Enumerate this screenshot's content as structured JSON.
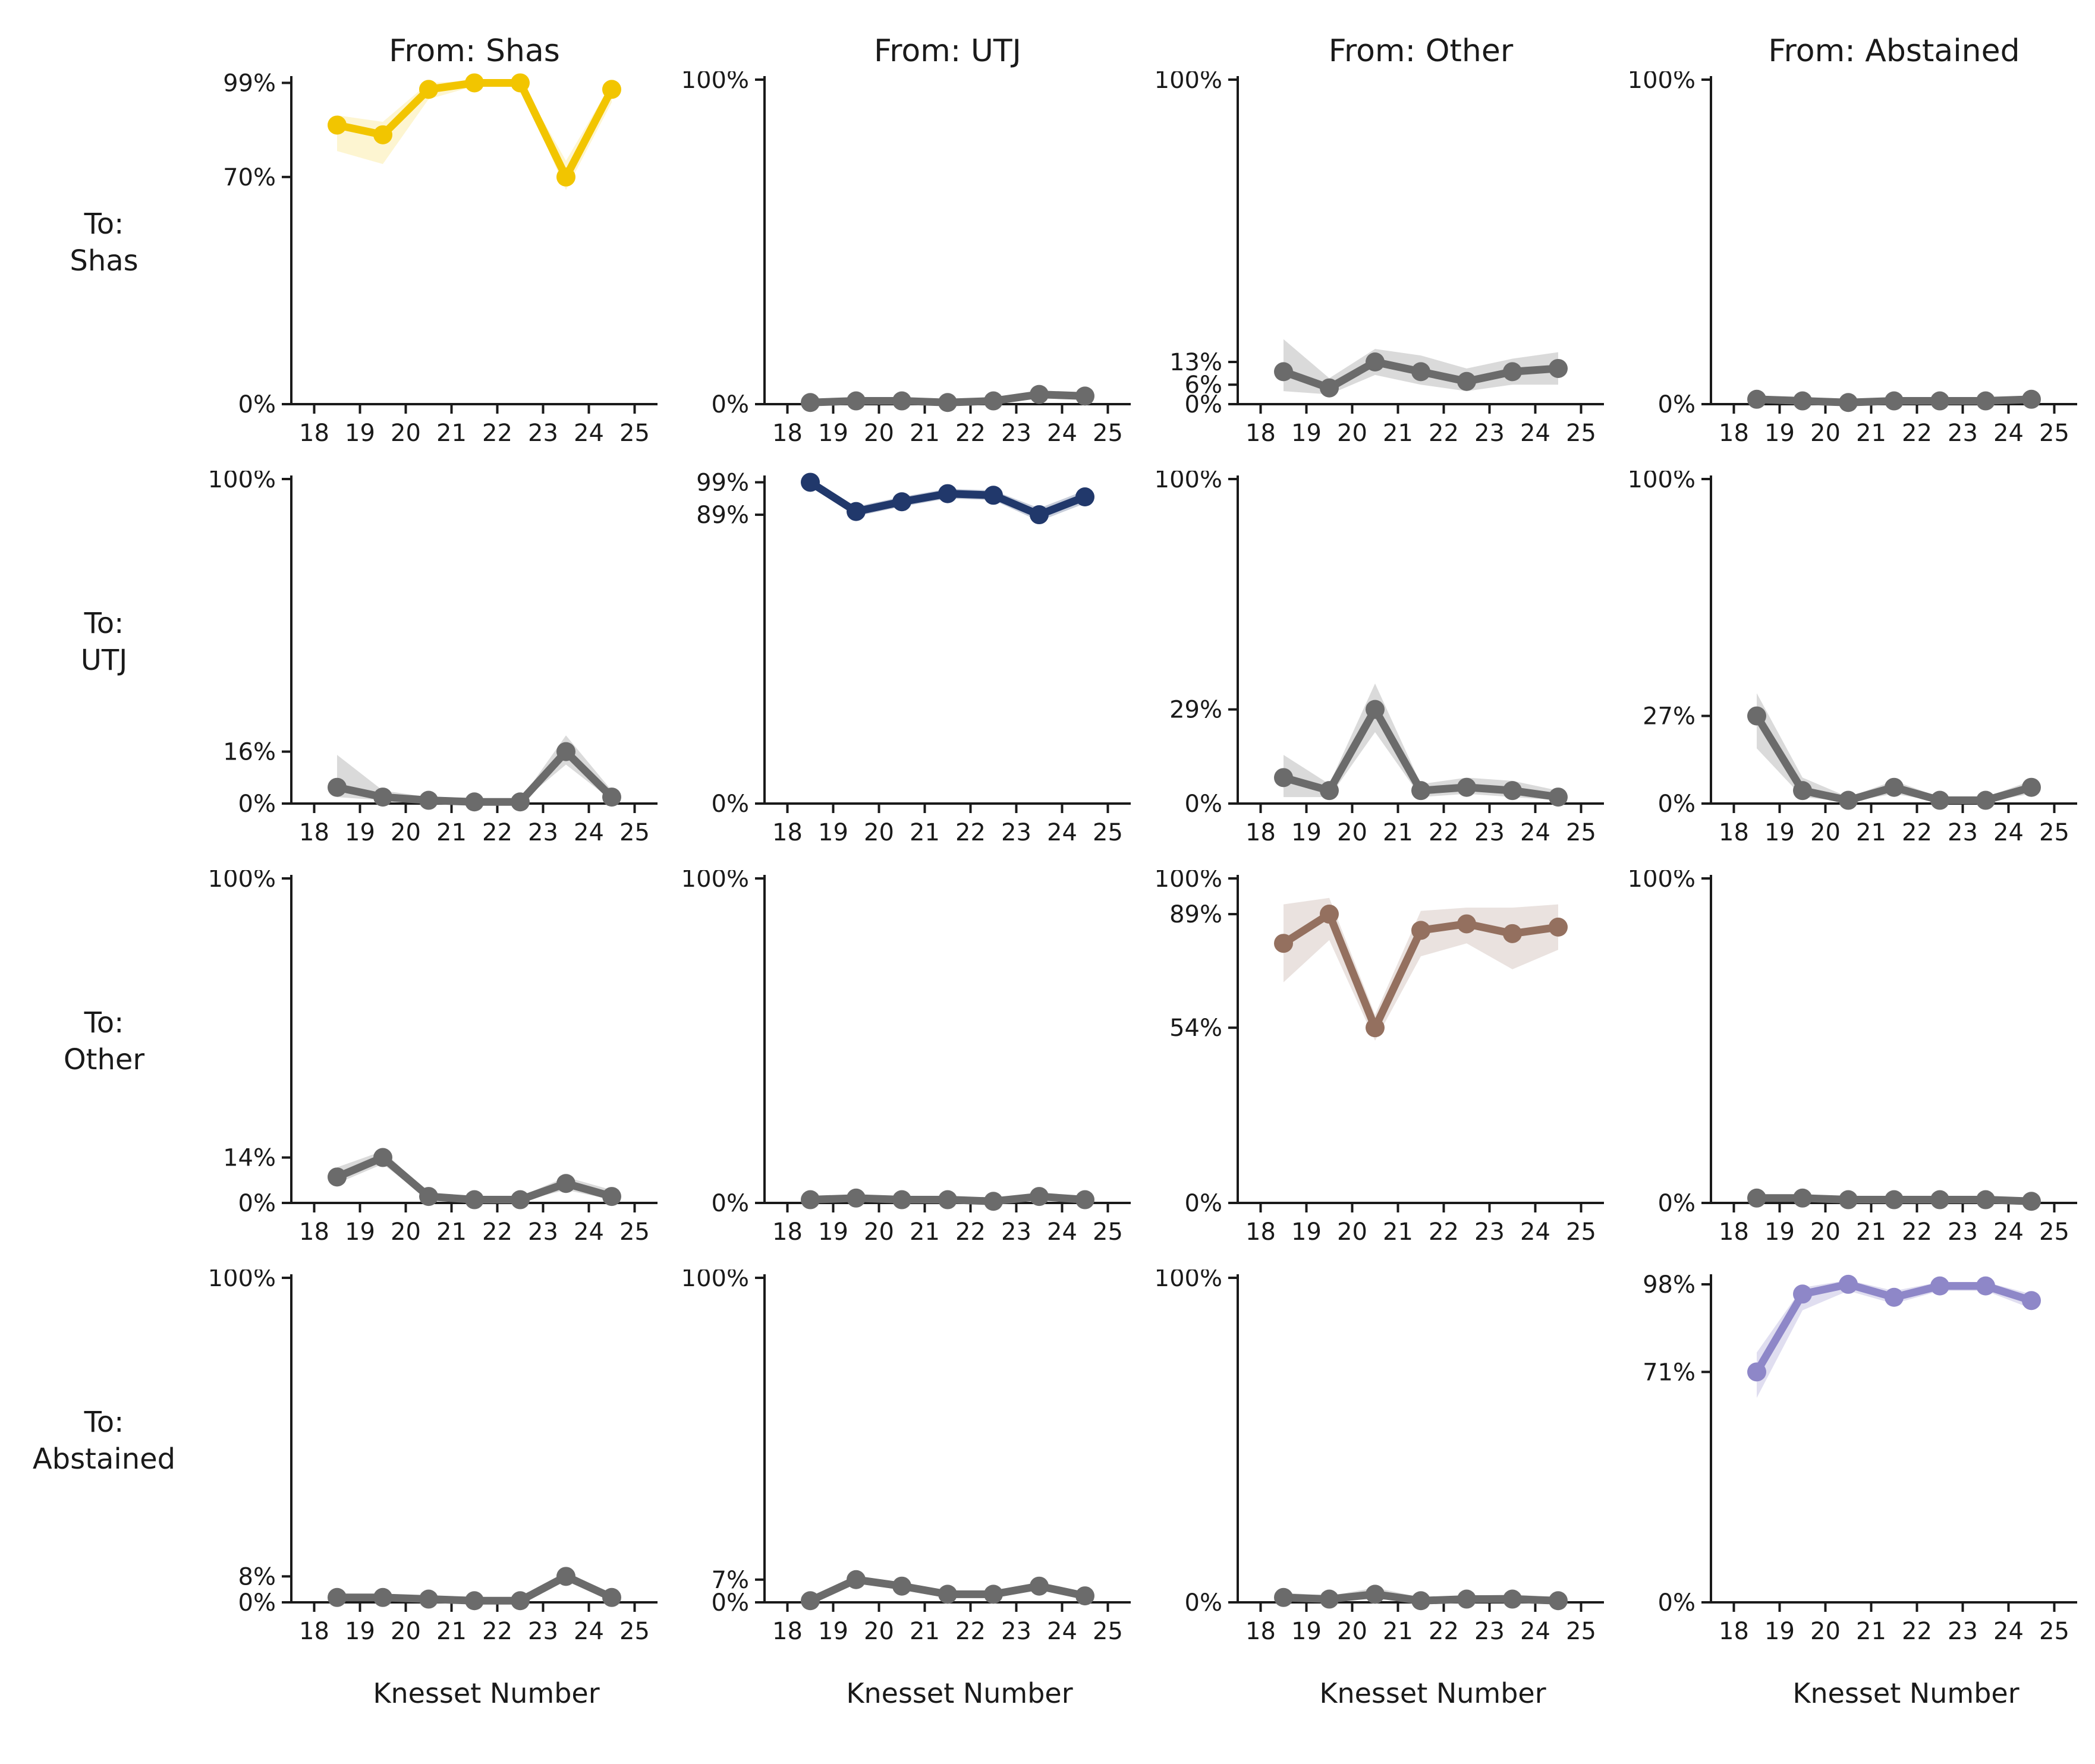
{
  "figure": {
    "background": "#ffffff",
    "text_color": "#1a1a1a"
  },
  "chart_data": {
    "type": "line",
    "title": "",
    "xlabel": "Knesset Number",
    "ylabel": "",
    "grid": false,
    "legend": "none",
    "x_range": [
      17.5,
      25.5
    ],
    "y_range": [
      0,
      100
    ],
    "x_tick_labels": [
      "18",
      "19",
      "20",
      "21",
      "22",
      "23",
      "24",
      "25"
    ],
    "x_points": [
      18.5,
      19.5,
      20.5,
      21.5,
      22.5,
      23.5,
      24.5
    ],
    "col_titles": [
      "From: Shas",
      "From: UTJ",
      "From: Other",
      "From: Abstained"
    ],
    "row_labels": [
      {
        "line1": "To:",
        "line2": "Shas"
      },
      {
        "line1": "To:",
        "line2": "UTJ"
      },
      {
        "line1": "To:",
        "line2": "Other"
      },
      {
        "line1": "To:",
        "line2": "Abstained"
      }
    ],
    "subplots": [
      {
        "from": "Shas",
        "to": "Shas",
        "color": "#F2C500",
        "band_opacity": 0.18,
        "y_ticks": [
          {
            "label": "99%",
            "value": 99
          },
          {
            "label": "70%",
            "value": 70
          },
          {
            "label": "0%",
            "value": 0
          }
        ],
        "values": [
          86,
          83,
          97,
          99,
          99,
          70,
          97
        ],
        "lo": [
          78,
          74,
          94,
          98,
          98,
          66,
          93
        ],
        "hi": [
          89,
          87,
          99,
          99.7,
          99.7,
          75,
          99
        ]
      },
      {
        "from": "UTJ",
        "to": "Shas",
        "color": "#6B6B6B",
        "band_opacity": 0.25,
        "y_ticks": [
          {
            "label": "100%",
            "value": 100
          },
          {
            "label": "0%",
            "value": 0
          }
        ],
        "values": [
          0.5,
          1,
          1,
          0.5,
          1,
          3,
          2.5
        ],
        "lo": [
          0.2,
          0.5,
          0.5,
          0.2,
          0.5,
          2,
          1.5
        ],
        "hi": [
          1,
          1.5,
          1.5,
          1,
          1.5,
          4,
          3.5
        ]
      },
      {
        "from": "Other",
        "to": "Shas",
        "color": "#6B6B6B",
        "band_opacity": 0.25,
        "y_ticks": [
          {
            "label": "100%",
            "value": 100
          },
          {
            "label": "13%",
            "value": 13
          },
          {
            "label": "6%",
            "value": 6
          },
          {
            "label": "0%",
            "value": 0
          }
        ],
        "values": [
          10,
          5,
          13,
          10,
          7,
          10,
          11
        ],
        "lo": [
          4,
          3,
          9,
          6,
          4,
          6,
          6
        ],
        "hi": [
          20,
          8,
          17,
          15,
          11,
          14,
          16
        ]
      },
      {
        "from": "Abstained",
        "to": "Shas",
        "color": "#6B6B6B",
        "band_opacity": 0.25,
        "y_ticks": [
          {
            "label": "100%",
            "value": 100
          },
          {
            "label": "0%",
            "value": 0
          }
        ],
        "values": [
          1.5,
          1,
          0.5,
          1,
          1,
          1,
          1.5
        ],
        "lo": [
          1,
          0.5,
          0.2,
          0.5,
          0.5,
          0.5,
          1
        ],
        "hi": [
          2.5,
          2,
          1,
          2,
          2,
          2,
          2.5
        ]
      },
      {
        "from": "Shas",
        "to": "UTJ",
        "color": "#6B6B6B",
        "band_opacity": 0.25,
        "y_ticks": [
          {
            "label": "100%",
            "value": 100
          },
          {
            "label": "16%",
            "value": 16
          },
          {
            "label": "0%",
            "value": 0
          }
        ],
        "values": [
          5,
          2,
          1,
          0.5,
          0.5,
          16,
          2
        ],
        "lo": [
          2,
          1,
          0.5,
          0.2,
          0.2,
          12,
          1
        ],
        "hi": [
          15,
          4,
          2,
          1,
          1,
          21,
          4
        ]
      },
      {
        "from": "UTJ",
        "to": "UTJ",
        "color": "#21386B",
        "band_opacity": 0.25,
        "y_ticks": [
          {
            "label": "99%",
            "value": 99
          },
          {
            "label": "89%",
            "value": 89
          },
          {
            "label": "0%",
            "value": 0
          }
        ],
        "values": [
          99,
          90,
          93,
          95.5,
          95,
          89,
          94.5
        ],
        "lo": [
          98,
          88.5,
          91.5,
          94,
          93.5,
          87,
          92.5
        ],
        "hi": [
          99.7,
          91.5,
          94.5,
          97,
          96.5,
          91,
          96.5
        ]
      },
      {
        "from": "Other",
        "to": "UTJ",
        "color": "#6B6B6B",
        "band_opacity": 0.25,
        "y_ticks": [
          {
            "label": "100%",
            "value": 100
          },
          {
            "label": "29%",
            "value": 29
          },
          {
            "label": "0%",
            "value": 0
          }
        ],
        "values": [
          8,
          4,
          29,
          4,
          5,
          4,
          2
        ],
        "lo": [
          2,
          2,
          22,
          2,
          3,
          2,
          1
        ],
        "hi": [
          15,
          6,
          37,
          6,
          8,
          7,
          4
        ]
      },
      {
        "from": "Abstained",
        "to": "UTJ",
        "color": "#6B6B6B",
        "band_opacity": 0.25,
        "y_ticks": [
          {
            "label": "100%",
            "value": 100
          },
          {
            "label": "27%",
            "value": 27
          },
          {
            "label": "0%",
            "value": 0
          }
        ],
        "values": [
          27,
          4,
          1,
          5,
          1,
          1,
          5
        ],
        "lo": [
          17,
          2,
          0.5,
          3,
          0.5,
          0.5,
          3
        ],
        "hi": [
          34,
          8,
          2,
          7,
          2,
          2,
          7
        ]
      },
      {
        "from": "Shas",
        "to": "Other",
        "color": "#6B6B6B",
        "band_opacity": 0.25,
        "y_ticks": [
          {
            "label": "100%",
            "value": 100
          },
          {
            "label": "14%",
            "value": 14
          },
          {
            "label": "0%",
            "value": 0
          }
        ],
        "values": [
          8,
          14,
          2,
          1,
          1,
          6,
          2
        ],
        "lo": [
          6,
          12,
          1,
          0.5,
          0.5,
          4,
          1
        ],
        "hi": [
          11,
          16,
          3,
          2,
          2,
          8,
          4
        ]
      },
      {
        "from": "UTJ",
        "to": "Other",
        "color": "#6B6B6B",
        "band_opacity": 0.25,
        "y_ticks": [
          {
            "label": "100%",
            "value": 100
          },
          {
            "label": "0%",
            "value": 0
          }
        ],
        "values": [
          1,
          1.5,
          1,
          1,
          0.5,
          2,
          1
        ],
        "lo": [
          0.5,
          1,
          0.5,
          0.5,
          0.2,
          1,
          0.5
        ],
        "hi": [
          1.5,
          2,
          1.5,
          1.5,
          1,
          3,
          1.5
        ]
      },
      {
        "from": "Other",
        "to": "Other",
        "color": "#94705F",
        "band_opacity": 0.2,
        "y_ticks": [
          {
            "label": "100%",
            "value": 100
          },
          {
            "label": "89%",
            "value": 89
          },
          {
            "label": "54%",
            "value": 54
          },
          {
            "label": "0%",
            "value": 0
          }
        ],
        "values": [
          80,
          89,
          54,
          84,
          86,
          83,
          85
        ],
        "lo": [
          68,
          81,
          50,
          76,
          80,
          72,
          78
        ],
        "hi": [
          92,
          94,
          58,
          90,
          91,
          91,
          92
        ]
      },
      {
        "from": "Abstained",
        "to": "Other",
        "color": "#6B6B6B",
        "band_opacity": 0.25,
        "y_ticks": [
          {
            "label": "100%",
            "value": 100
          },
          {
            "label": "0%",
            "value": 0
          }
        ],
        "values": [
          1.5,
          1.5,
          1,
          1,
          1,
          1,
          0.5
        ],
        "lo": [
          1,
          1,
          0.5,
          0.5,
          0.5,
          0.5,
          0.2
        ],
        "hi": [
          2.5,
          2.5,
          1.5,
          1.5,
          1.5,
          1.5,
          1
        ]
      },
      {
        "from": "Shas",
        "to": "Abstained",
        "color": "#6B6B6B",
        "band_opacity": 0.25,
        "y_ticks": [
          {
            "label": "100%",
            "value": 100
          },
          {
            "label": "8%",
            "value": 8
          },
          {
            "label": "0%",
            "value": 0
          }
        ],
        "values": [
          1.5,
          1.5,
          1,
          0.5,
          0.5,
          8,
          1.5
        ],
        "lo": [
          1,
          1,
          0.5,
          0.2,
          0.2,
          6.5,
          0.8
        ],
        "hi": [
          2.5,
          2.5,
          1.5,
          1,
          1,
          9.5,
          2.5
        ]
      },
      {
        "from": "UTJ",
        "to": "Abstained",
        "color": "#6B6B6B",
        "band_opacity": 0.25,
        "y_ticks": [
          {
            "label": "100%",
            "value": 100
          },
          {
            "label": "7%",
            "value": 7
          },
          {
            "label": "0%",
            "value": 0
          }
        ],
        "values": [
          0.5,
          7,
          5,
          2.5,
          2.5,
          5,
          2
        ],
        "lo": [
          0.2,
          6,
          4,
          1.8,
          1.8,
          4,
          1.2
        ],
        "hi": [
          1,
          8,
          6,
          3.5,
          3.5,
          6,
          3
        ]
      },
      {
        "from": "Other",
        "to": "Abstained",
        "color": "#6B6B6B",
        "band_opacity": 0.25,
        "y_ticks": [
          {
            "label": "100%",
            "value": 100
          },
          {
            "label": "0%",
            "value": 0
          }
        ],
        "values": [
          1.5,
          1,
          2.5,
          0.5,
          1,
          1,
          0.5
        ],
        "lo": [
          1,
          0.5,
          1,
          0.2,
          0.5,
          0.3,
          0.2
        ],
        "hi": [
          3,
          2,
          4.5,
          1.5,
          2,
          2.5,
          1.5
        ]
      },
      {
        "from": "Abstained",
        "to": "Abstained",
        "color": "#8E87C8",
        "band_opacity": 0.28,
        "y_ticks": [
          {
            "label": "98%",
            "value": 98
          },
          {
            "label": "71%",
            "value": 71
          },
          {
            "label": "0%",
            "value": 0
          }
        ],
        "values": [
          71,
          95,
          98,
          94,
          97.5,
          97.5,
          93
        ],
        "lo": [
          63,
          90,
          96,
          92,
          96,
          96,
          90.5
        ],
        "hi": [
          77,
          97,
          99.3,
          96,
          98.7,
          98.7,
          95
        ]
      }
    ]
  }
}
